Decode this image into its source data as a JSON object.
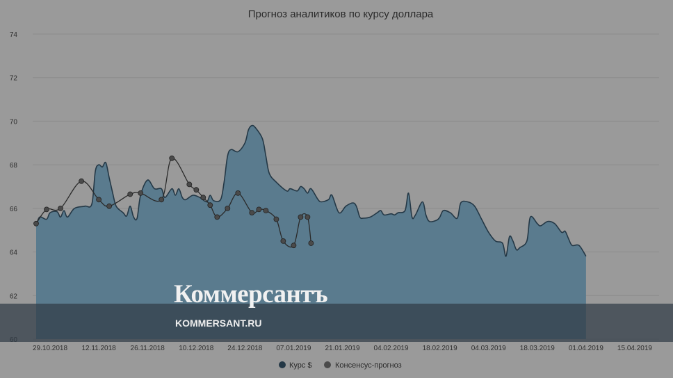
{
  "colors": {
    "background": "#9a9a9a",
    "area_fill": "#5a7b8e",
    "area_line": "#243846",
    "forecast_line": "#2a2a2a",
    "forecast_marker": "#4a4a4a",
    "grid": "#8c8c8c",
    "watermark_band": "#303c46"
  },
  "watermark": {
    "logo": "Коммерсантъ",
    "url": "KOMMERSANT.RU"
  },
  "chart_data": {
    "type": "area",
    "title": "Прогноз аналитиков по курсу доллара",
    "xlabel": "",
    "ylabel": "",
    "ylim": [
      60,
      74
    ],
    "yticks": [
      60,
      62,
      64,
      66,
      68,
      70,
      72,
      74
    ],
    "x_range": [
      "2018-10-24",
      "2019-04-22"
    ],
    "x_ticks": [
      {
        "date": "2018-10-29",
        "label": "29.10.2018"
      },
      {
        "date": "2018-11-12",
        "label": "12.11.2018"
      },
      {
        "date": "2018-11-26",
        "label": "26.11.2018"
      },
      {
        "date": "2018-12-10",
        "label": "10.12.2018"
      },
      {
        "date": "2018-12-24",
        "label": "24.12.2018"
      },
      {
        "date": "2019-01-07",
        "label": "07.01.2019"
      },
      {
        "date": "2019-01-21",
        "label": "21.01.2019"
      },
      {
        "date": "2019-02-04",
        "label": "04.02.2019"
      },
      {
        "date": "2019-02-18",
        "label": "18.02.2019"
      },
      {
        "date": "2019-03-04",
        "label": "04.03.2019"
      },
      {
        "date": "2019-03-18",
        "label": "18.03.2019"
      },
      {
        "date": "2019-04-01",
        "label": "01.04.2019"
      },
      {
        "date": "2019-04-15",
        "label": "15.04.2019"
      }
    ],
    "grid": true,
    "legend_position": "bottom-center",
    "series": [
      {
        "name": "Курс $",
        "style": "area",
        "points": [
          [
            "2018-10-25",
            65.2
          ],
          [
            "2018-10-26",
            65.6
          ],
          [
            "2018-10-28",
            65.5
          ],
          [
            "2018-10-29",
            65.8
          ],
          [
            "2018-10-31",
            65.85
          ],
          [
            "2018-11-01",
            65.6
          ],
          [
            "2018-11-02",
            65.9
          ],
          [
            "2018-11-03",
            65.6
          ],
          [
            "2018-11-05",
            66.0
          ],
          [
            "2018-11-08",
            66.1
          ],
          [
            "2018-11-10",
            66.2
          ],
          [
            "2018-11-11",
            67.7
          ],
          [
            "2018-11-12",
            68.0
          ],
          [
            "2018-11-13",
            67.9
          ],
          [
            "2018-11-14",
            68.1
          ],
          [
            "2018-11-15",
            67.4
          ],
          [
            "2018-11-16",
            66.7
          ],
          [
            "2018-11-17",
            66.1
          ],
          [
            "2018-11-19",
            65.8
          ],
          [
            "2018-11-20",
            65.65
          ],
          [
            "2018-11-21",
            66.1
          ],
          [
            "2018-11-22",
            65.6
          ],
          [
            "2018-11-23",
            65.55
          ],
          [
            "2018-11-24",
            66.6
          ],
          [
            "2018-11-26",
            67.3
          ],
          [
            "2018-11-28",
            66.9
          ],
          [
            "2018-11-30",
            66.9
          ],
          [
            "2018-12-01",
            66.5
          ],
          [
            "2018-12-03",
            66.9
          ],
          [
            "2018-12-04",
            66.6
          ],
          [
            "2018-12-05",
            66.9
          ],
          [
            "2018-12-06",
            66.5
          ],
          [
            "2018-12-07",
            66.4
          ],
          [
            "2018-12-09",
            66.6
          ],
          [
            "2018-12-11",
            66.5
          ],
          [
            "2018-12-13",
            66.3
          ],
          [
            "2018-12-14",
            66.6
          ],
          [
            "2018-12-15",
            66.35
          ],
          [
            "2018-12-17",
            66.4
          ],
          [
            "2018-12-18",
            67.2
          ],
          [
            "2018-12-19",
            68.4
          ],
          [
            "2018-12-20",
            68.7
          ],
          [
            "2018-12-22",
            68.6
          ],
          [
            "2018-12-24",
            69.0
          ],
          [
            "2018-12-25",
            69.6
          ],
          [
            "2018-12-26",
            69.8
          ],
          [
            "2018-12-27",
            69.7
          ],
          [
            "2018-12-29",
            69.2
          ],
          [
            "2018-12-30",
            68.4
          ],
          [
            "2018-12-31",
            67.6
          ],
          [
            "2019-01-02",
            67.2
          ],
          [
            "2019-01-05",
            66.8
          ],
          [
            "2019-01-06",
            66.9
          ],
          [
            "2019-01-08",
            66.8
          ],
          [
            "2019-01-09",
            67.0
          ],
          [
            "2019-01-10",
            66.9
          ],
          [
            "2019-01-11",
            66.7
          ],
          [
            "2019-01-12",
            66.9
          ],
          [
            "2019-01-14",
            66.4
          ],
          [
            "2019-01-15",
            66.3
          ],
          [
            "2019-01-17",
            66.4
          ],
          [
            "2019-01-18",
            66.6
          ],
          [
            "2019-01-20",
            65.8
          ],
          [
            "2019-01-22",
            66.1
          ],
          [
            "2019-01-24",
            66.25
          ],
          [
            "2019-01-25",
            66.1
          ],
          [
            "2019-01-26",
            65.6
          ],
          [
            "2019-01-27",
            65.55
          ],
          [
            "2019-01-29",
            65.6
          ],
          [
            "2019-01-31",
            65.8
          ],
          [
            "2019-02-01",
            65.9
          ],
          [
            "2019-02-02",
            65.7
          ],
          [
            "2019-02-04",
            65.75
          ],
          [
            "2019-02-05",
            65.7
          ],
          [
            "2019-02-06",
            65.8
          ],
          [
            "2019-02-08",
            65.9
          ],
          [
            "2019-02-09",
            66.7
          ],
          [
            "2019-02-10",
            65.6
          ],
          [
            "2019-02-11",
            65.7
          ],
          [
            "2019-02-13",
            66.3
          ],
          [
            "2019-02-14",
            65.7
          ],
          [
            "2019-02-15",
            65.4
          ],
          [
            "2019-02-17",
            65.45
          ],
          [
            "2019-02-18",
            65.6
          ],
          [
            "2019-02-19",
            65.9
          ],
          [
            "2019-02-21",
            65.8
          ],
          [
            "2019-02-23",
            65.55
          ],
          [
            "2019-02-24",
            66.25
          ],
          [
            "2019-02-26",
            66.3
          ],
          [
            "2019-02-28",
            66.1
          ],
          [
            "2019-03-02",
            65.5
          ],
          [
            "2019-03-04",
            64.9
          ],
          [
            "2019-03-06",
            64.5
          ],
          [
            "2019-03-08",
            64.4
          ],
          [
            "2019-03-09",
            63.8
          ],
          [
            "2019-03-10",
            64.7
          ],
          [
            "2019-03-11",
            64.5
          ],
          [
            "2019-03-12",
            64.1
          ],
          [
            "2019-03-13",
            64.2
          ],
          [
            "2019-03-15",
            64.5
          ],
          [
            "2019-03-16",
            65.6
          ],
          [
            "2019-03-18",
            65.3
          ],
          [
            "2019-03-19",
            65.2
          ],
          [
            "2019-03-21",
            65.4
          ],
          [
            "2019-03-23",
            65.3
          ],
          [
            "2019-03-25",
            64.9
          ],
          [
            "2019-03-26",
            64.95
          ],
          [
            "2019-03-27",
            64.6
          ],
          [
            "2019-03-28",
            64.3
          ],
          [
            "2019-03-30",
            64.3
          ],
          [
            "2019-04-01",
            63.8
          ]
        ]
      },
      {
        "name": "Консенсус-прогноз",
        "style": "line",
        "points": [
          [
            "2018-10-25",
            65.3
          ],
          [
            "2018-10-28",
            65.95
          ],
          [
            "2018-11-01",
            66.0
          ],
          [
            "2018-11-07",
            67.25
          ],
          [
            "2018-11-12",
            66.4
          ],
          [
            "2018-11-15",
            66.1
          ],
          [
            "2018-11-21",
            66.65
          ],
          [
            "2018-11-24",
            66.7
          ],
          [
            "2018-11-30",
            66.4
          ],
          [
            "2018-12-03",
            68.3
          ],
          [
            "2018-12-08",
            67.1
          ],
          [
            "2018-12-10",
            66.85
          ],
          [
            "2018-12-12",
            66.5
          ],
          [
            "2018-12-14",
            66.15
          ],
          [
            "2018-12-16",
            65.6
          ],
          [
            "2018-12-19",
            66.0
          ],
          [
            "2018-12-22",
            66.7
          ],
          [
            "2018-12-26",
            65.8
          ],
          [
            "2018-12-28",
            65.95
          ],
          [
            "2018-12-30",
            65.9
          ],
          [
            "2019-01-02",
            65.5
          ],
          [
            "2019-01-04",
            64.5
          ],
          [
            "2019-01-07",
            64.3
          ],
          [
            "2019-01-09",
            65.6
          ],
          [
            "2019-01-11",
            65.6
          ],
          [
            "2019-01-12",
            64.4
          ]
        ]
      }
    ]
  }
}
